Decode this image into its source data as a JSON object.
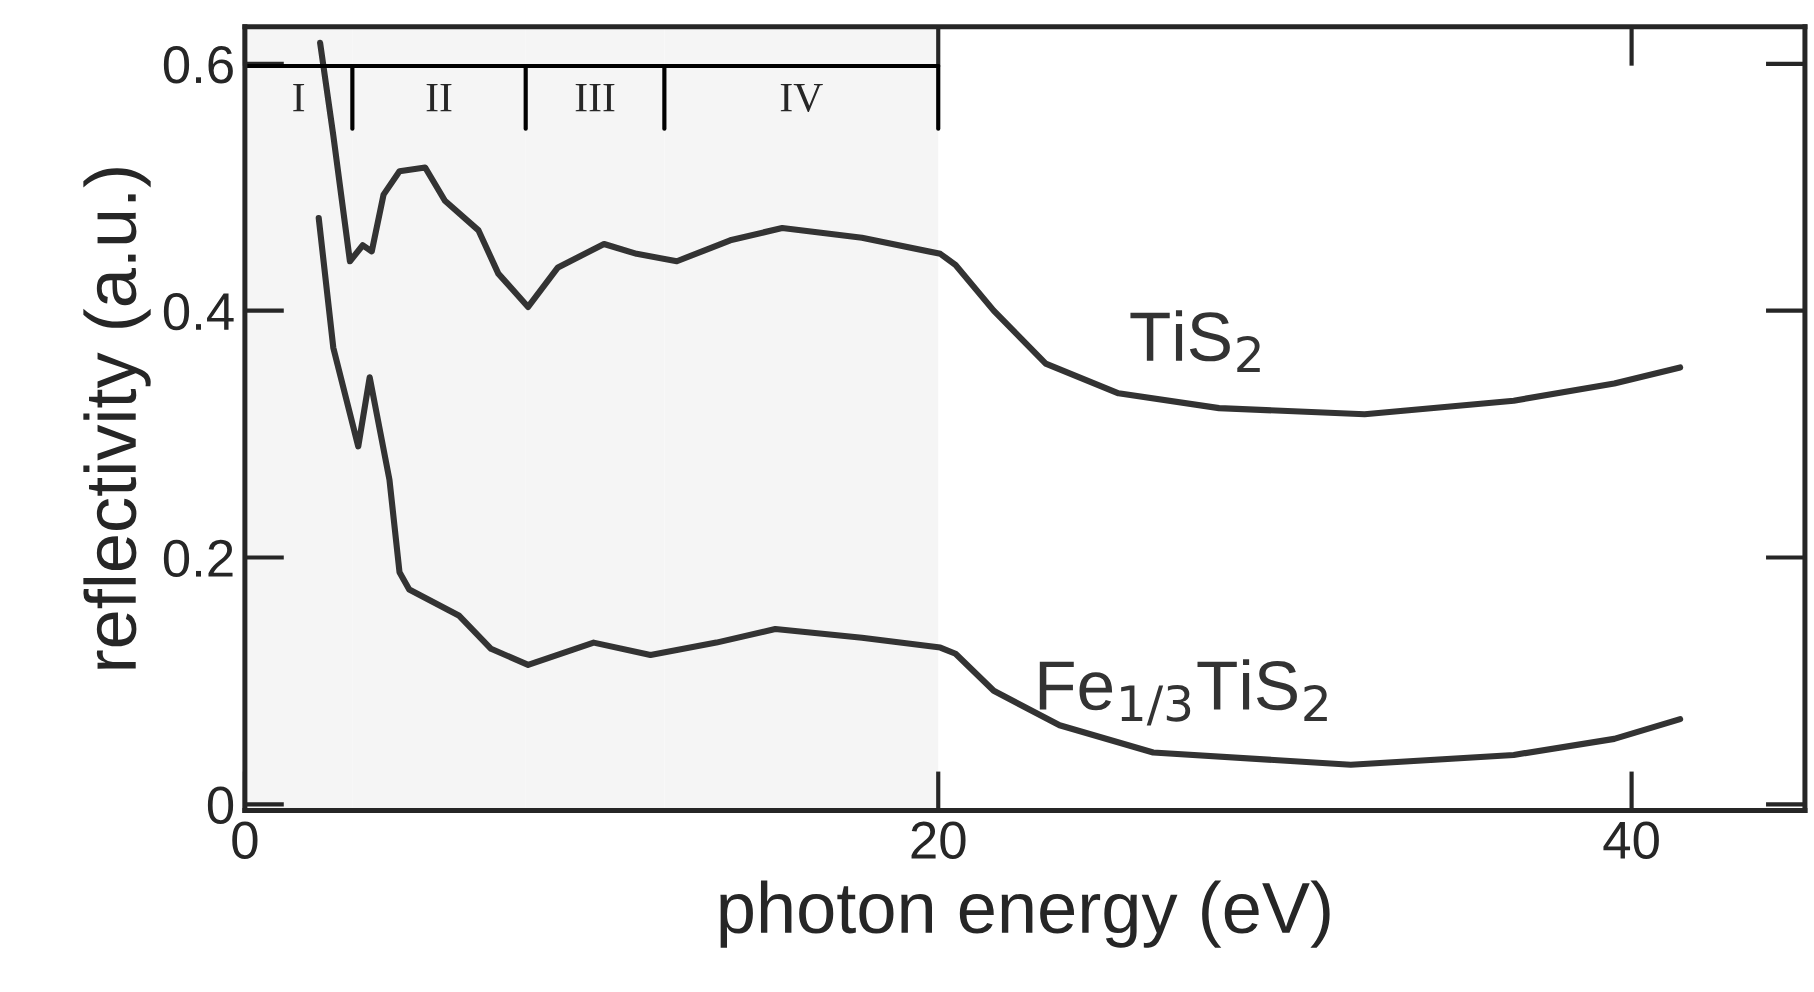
{
  "chart_data": {
    "type": "line",
    "xlabel": "photon energy (eV)",
    "ylabel": "reflectivity (a.u.)",
    "xlim": [
      0,
      45
    ],
    "ylim": [
      -0.005,
      0.63
    ],
    "xticks": [
      0,
      20,
      40
    ],
    "yticks": [
      0,
      0.2,
      0.4,
      0.6
    ],
    "grid": false,
    "legend": false,
    "marker": "none",
    "line_style": "solid",
    "bands": [
      {
        "axis": "x",
        "from": 0,
        "to": 3.1,
        "label": "I"
      },
      {
        "axis": "x",
        "from": 3.1,
        "to": 8.1,
        "label": "II"
      },
      {
        "axis": "x",
        "from": 8.1,
        "to": 12.1,
        "label": "III"
      },
      {
        "axis": "x",
        "from": 12.1,
        "to": 20,
        "label": "IV"
      }
    ],
    "series": [
      {
        "name": "TiS$_{2}$",
        "color": "#333333",
        "x": [
          2.17,
          2.55,
          3.03,
          3.4,
          3.66,
          4.0,
          4.46,
          5.2,
          5.77,
          6.74,
          7.31,
          8.17,
          9.03,
          10.36,
          11.3,
          12.46,
          14.0,
          15.5,
          17.8,
          20.06,
          20.5,
          21.6,
          23.1,
          25.2,
          28.1,
          32.3,
          36.6,
          39.5,
          41.4
        ],
        "values": [
          0.617,
          0.542,
          0.44,
          0.453,
          0.448,
          0.494,
          0.513,
          0.516,
          0.489,
          0.465,
          0.43,
          0.403,
          0.435,
          0.454,
          0.446,
          0.44,
          0.457,
          0.467,
          0.459,
          0.446,
          0.437,
          0.4,
          0.357,
          0.333,
          0.321,
          0.316,
          0.327,
          0.341,
          0.354
        ]
      },
      {
        "name": "Fe$_{1/3}$TiS$_{2}$",
        "color": "#333333",
        "x": [
          2.13,
          2.55,
          3.27,
          3.6,
          4.17,
          4.46,
          4.74,
          6.17,
          7.1,
          8.17,
          10.06,
          11.7,
          13.6,
          15.3,
          17.8,
          20.06,
          20.5,
          21.6,
          23.5,
          26.2,
          31.9,
          36.6,
          39.5,
          41.4
        ],
        "values": [
          0.475,
          0.37,
          0.29,
          0.346,
          0.263,
          0.188,
          0.174,
          0.153,
          0.126,
          0.113,
          0.131,
          0.121,
          0.131,
          0.142,
          0.135,
          0.127,
          0.122,
          0.092,
          0.064,
          0.042,
          0.032,
          0.04,
          0.053,
          0.069
        ]
      }
    ]
  }
}
